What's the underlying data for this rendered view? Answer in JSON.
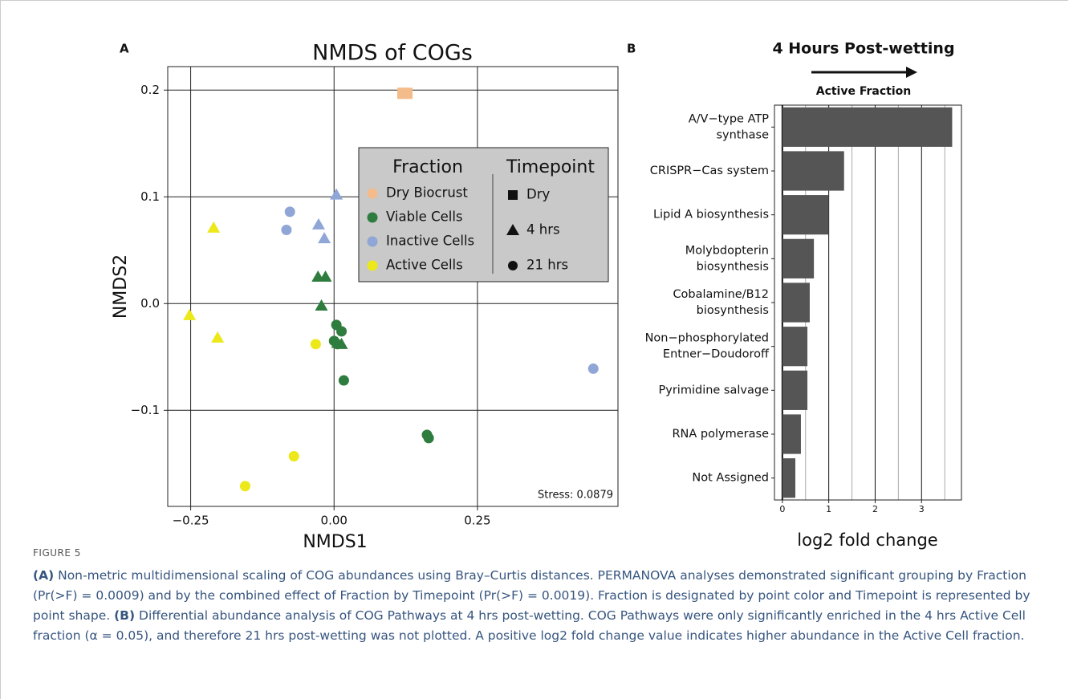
{
  "chart_data": [
    {
      "type": "scatter",
      "panel": "A",
      "title": "NMDS of COGs",
      "xlabel": "NMDS1",
      "ylabel": "NMDS2",
      "xlim": [
        -0.29,
        0.495
      ],
      "ylim": [
        -0.19,
        0.222
      ],
      "xticks": [
        {
          "value": -0.25,
          "label": "−0.25"
        },
        {
          "value": 0,
          "label": "0.00"
        },
        {
          "value": 0.25,
          "label": "0.25"
        }
      ],
      "yticks": [
        {
          "value": -0.1,
          "label": "−0.1"
        },
        {
          "value": 0,
          "label": "0.0"
        },
        {
          "value": 0.1,
          "label": "0.1"
        },
        {
          "value": 0.2,
          "label": "0.2"
        }
      ],
      "grid": true,
      "annotation": "Stress: 0.0879",
      "legend": {
        "title": "Fraction",
        "corner": "upper right"
      },
      "shape_legend": {
        "title": "Timepoint",
        "entries": [
          {
            "label": "Dry",
            "shape": "square"
          },
          {
            "label": "4 hrs",
            "shape": "triangle"
          },
          {
            "label": "21 hrs",
            "shape": "circle"
          }
        ]
      },
      "series": [
        {
          "name": "Dry Biocrust",
          "color": "#f4bc8a",
          "x": [
            0.12,
            0.127
          ],
          "values": [
            0.197,
            0.197
          ],
          "shapes": [
            "square",
            "square"
          ]
        },
        {
          "name": "Viable Cells",
          "color": "#2e7d3e",
          "x": [
            -0.028,
            -0.015,
            -0.022,
            0.006,
            0.013,
            0.004,
            0.013,
            0,
            0.006,
            0.017,
            0.162,
            0.165
          ],
          "values": [
            0.025,
            0.025,
            -0.002,
            -0.037,
            -0.038,
            -0.02,
            -0.026,
            -0.035,
            -0.038,
            -0.072,
            -0.123,
            -0.126
          ],
          "shapes": [
            "triangle",
            "triangle",
            "triangle",
            "triangle",
            "triangle",
            "circle",
            "circle",
            "circle",
            "circle",
            "circle",
            "circle",
            "circle"
          ]
        },
        {
          "name": "Inactive Cells",
          "color": "#8fa6d6",
          "x": [
            0.004,
            -0.027,
            -0.017,
            -0.077,
            -0.083,
            0.452
          ],
          "values": [
            0.102,
            0.074,
            0.061,
            0.086,
            0.069,
            -0.061
          ],
          "shapes": [
            "triangle",
            "triangle",
            "triangle",
            "circle",
            "circle",
            "circle"
          ]
        },
        {
          "name": "Active Cells",
          "color": "#ece81a",
          "x": [
            -0.21,
            -0.252,
            -0.203,
            -0.032,
            -0.07,
            -0.155
          ],
          "values": [
            0.071,
            -0.011,
            -0.032,
            -0.038,
            -0.143,
            -0.171
          ],
          "shapes": [
            "triangle",
            "triangle",
            "triangle",
            "circle",
            "circle",
            "circle"
          ]
        }
      ]
    },
    {
      "type": "barh",
      "panel": "B",
      "title": "4 Hours Post-wetting",
      "subtitle": "Active Fraction",
      "xlabel": "log2 fold change",
      "categories": [
        [
          "A/V−type ATP",
          "synthase"
        ],
        [
          "CRISPR−Cas system"
        ],
        [
          "Lipid A biosynthesis"
        ],
        [
          "Molybdopterin",
          "biosynthesis"
        ],
        [
          "Cobalamine/B12",
          "biosynthesis"
        ],
        [
          "Non−phosphorylated",
          "Entner−Doudoroff"
        ],
        [
          "Pyrimidine salvage"
        ],
        [
          "RNA polymerase"
        ],
        [
          "Not Assigned"
        ]
      ],
      "values": [
        3.66,
        1.33,
        1.0,
        0.68,
        0.59,
        0.54,
        0.54,
        0.4,
        0.28
      ],
      "color": "#555555",
      "xlim": [
        -0.17,
        3.86
      ],
      "xticks": [
        0,
        1,
        2,
        3
      ],
      "xticks_minor": [
        0.5,
        1.5,
        2.5,
        3.5
      ],
      "grid": true
    }
  ],
  "figure": {
    "label": "FIGURE 5",
    "caption": [
      {
        "text": "(A)",
        "bold": true
      },
      {
        "text": " Non-metric multidimensional scaling of COG abundances using Bray–Curtis distances. PERMANOVA analyses demonstrated significant grouping by Fraction (Pr(>F) = 0.0009) and by the combined effect of Fraction by Timepoint (Pr(>F) = 0.0019). Fraction is designated by point color and Timepoint is represented by point shape. ",
        "bold": false
      },
      {
        "text": "(B)",
        "bold": true
      },
      {
        "text": " Differential abundance analysis of COG Pathways at 4 hrs post-wetting. COG Pathways were only significantly enriched in the 4 hrs Active Cell fraction (α = 0.05), and therefore 21 hrs post-wetting was not plotted. A positive log2 fold change value indicates higher abundance in the Active Cell fraction.",
        "bold": false
      }
    ]
  }
}
